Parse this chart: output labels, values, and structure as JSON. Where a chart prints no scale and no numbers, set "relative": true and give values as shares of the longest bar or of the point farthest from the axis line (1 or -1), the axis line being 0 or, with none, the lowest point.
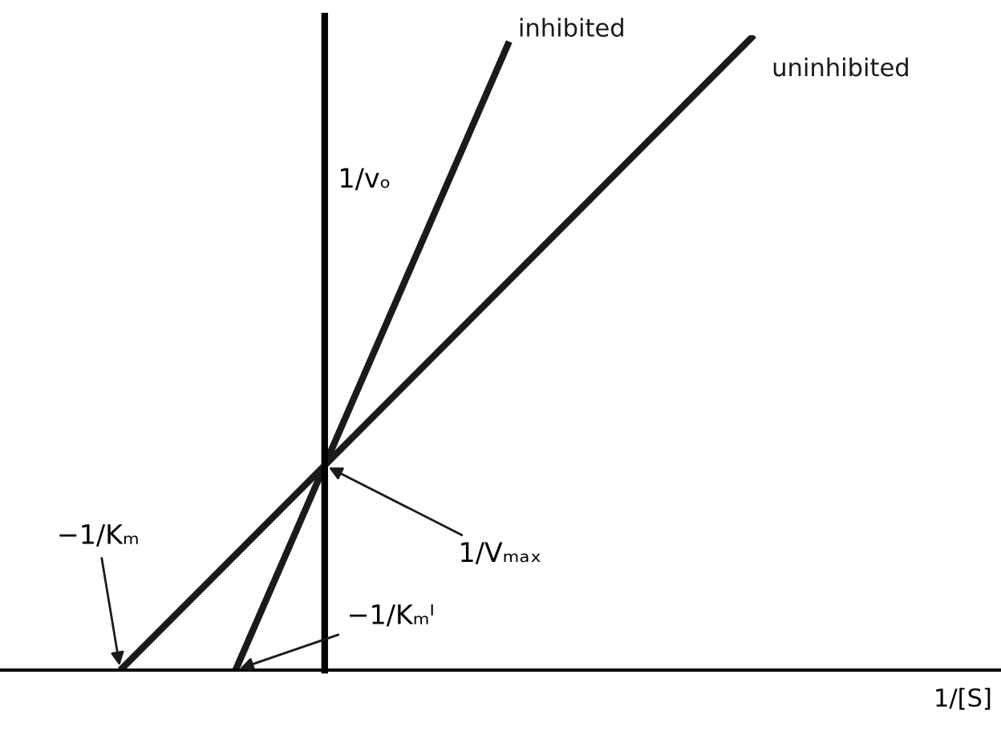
{
  "chart_data": {
    "type": "line",
    "relative": true,
    "ylabel": "1/vₒ",
    "categories": [
      null,
      null,
      null,
      null,
      null,
      null,
      null,
      null,
      null,
      null,
      null,
      null,
      null,
      null,
      null,
      null,
      null,
      null,
      null,
      null,
      null,
      null,
      null,
      null,
      null,
      null,
      null,
      null,
      null,
      null,
      null,
      null,
      null,
      null,
      null,
      null,
      null,
      null,
      null,
      null,
      null,
      null,
      null,
      null,
      null
    ],
    "series": [
      {
        "name": "inhibited",
        "color": "#1a1a1a",
        "values": [
          null,
          null,
          null,
          null,
          null,
          null,
          null,
          null,
          0,
          null,
          null,
          null,
          null,
          null,
          null,
          null,
          null,
          null,
          null,
          null,
          null,
          null,
          null,
          null,
          null,
          null,
          null,
          0.99,
          null,
          null,
          null,
          null,
          null,
          null,
          null,
          null,
          null,
          null,
          null,
          null,
          null,
          null,
          null,
          null,
          null
        ]
      },
      {
        "name": "uninhibited",
        "color": "#1a1a1a",
        "values": [
          0,
          null,
          null,
          null,
          null,
          null,
          null,
          null,
          null,
          null,
          null,
          null,
          null,
          null,
          null,
          null,
          null,
          null,
          null,
          null,
          null,
          null,
          null,
          null,
          null,
          null,
          null,
          null,
          null,
          null,
          null,
          null,
          null,
          null,
          null,
          null,
          null,
          null,
          null,
          null,
          null,
          null,
          null,
          null,
          1.0
        ]
      }
    ],
    "annotations": [
      "−1/Kₘ",
      "−1/Kₘᴵ",
      "1/Vₘₐₓ",
      "1/[S]"
    ],
    "marker": "none",
    "line_style": "solid",
    "legend": false
  }
}
